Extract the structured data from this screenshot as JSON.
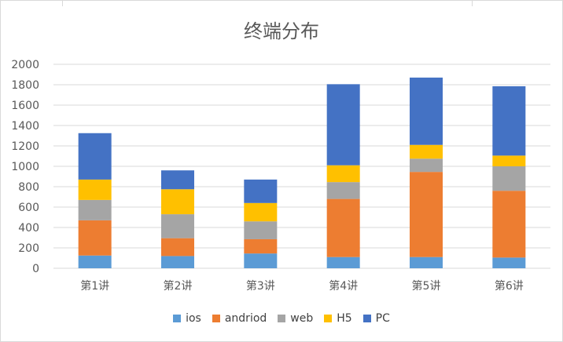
{
  "title": "终端分布",
  "chart_data": {
    "type": "bar",
    "stacked": true,
    "title": "终端分布",
    "xlabel": "",
    "ylabel": "",
    "categories": [
      "第1讲",
      "第2讲",
      "第3讲",
      "第4讲",
      "第5讲",
      "第6讲"
    ],
    "ylim": [
      0,
      2000
    ],
    "yticks": [
      0,
      200,
      400,
      600,
      800,
      1000,
      1200,
      1400,
      1600,
      1800,
      2000
    ],
    "grid": true,
    "legend": "bottom",
    "series": [
      {
        "name": "ios",
        "color": "#5B9BD5",
        "values": [
          125,
          120,
          145,
          110,
          110,
          105
        ]
      },
      {
        "name": "andriod",
        "color": "#ED7D31",
        "values": [
          345,
          175,
          140,
          570,
          835,
          655
        ]
      },
      {
        "name": "web",
        "color": "#A5A5A5",
        "values": [
          200,
          235,
          175,
          165,
          130,
          240
        ]
      },
      {
        "name": "H5",
        "color": "#FFC000",
        "values": [
          200,
          245,
          180,
          165,
          135,
          105
        ]
      },
      {
        "name": "PC",
        "color": "#4472C4",
        "values": [
          455,
          185,
          230,
          795,
          660,
          680
        ]
      }
    ]
  }
}
